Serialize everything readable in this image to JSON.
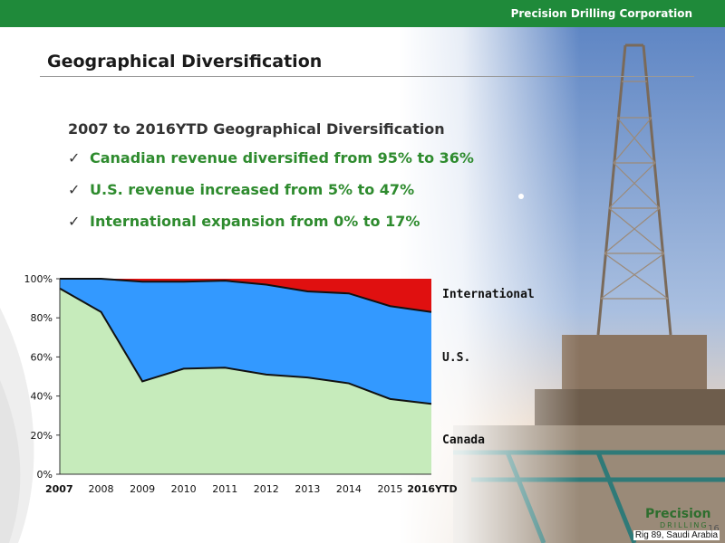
{
  "header": {
    "company": "Precision Drilling Corporation"
  },
  "slide": {
    "title": "Geographical Diversification",
    "content_title": "2007 to 2016YTD Geographical Diversification",
    "bullets": [
      "Canadian revenue diversified from 95% to 36%",
      "U.S. revenue increased from 5% to 47%",
      "International expansion from 0% to 17%"
    ],
    "photo_caption": "Rig 89, Saudi Arabia",
    "page_number": "16",
    "logo_text": "Precision",
    "logo_subtext": "DRILLING"
  },
  "colors": {
    "topbar": "#1f8a3a",
    "bullet_text": "#2e8b2e",
    "canada": "#c6ebbb",
    "us": "#3399ff",
    "international": "#e01010"
  },
  "chart_data": {
    "type": "area",
    "stacked": true,
    "categories": [
      "2007",
      "2008",
      "2009",
      "2010",
      "2011",
      "2012",
      "2013",
      "2014",
      "2015",
      "2016YTD"
    ],
    "series": [
      {
        "name": "Canada",
        "values": [
          95,
          83,
          47.5,
          54,
          54.5,
          51,
          49.5,
          46.5,
          38.5,
          36
        ]
      },
      {
        "name": "U.S.",
        "values": [
          5,
          17,
          51,
          44.5,
          44.5,
          46,
          44,
          46,
          47.5,
          47
        ]
      },
      {
        "name": "International",
        "values": [
          0,
          0,
          1.5,
          1.5,
          1,
          3,
          6.5,
          7.5,
          14,
          17
        ]
      }
    ],
    "y_ticks": [
      "0%",
      "20%",
      "40%",
      "60%",
      "80%",
      "100%"
    ],
    "ylim": [
      0,
      100
    ],
    "legend": "right, inline labels"
  }
}
